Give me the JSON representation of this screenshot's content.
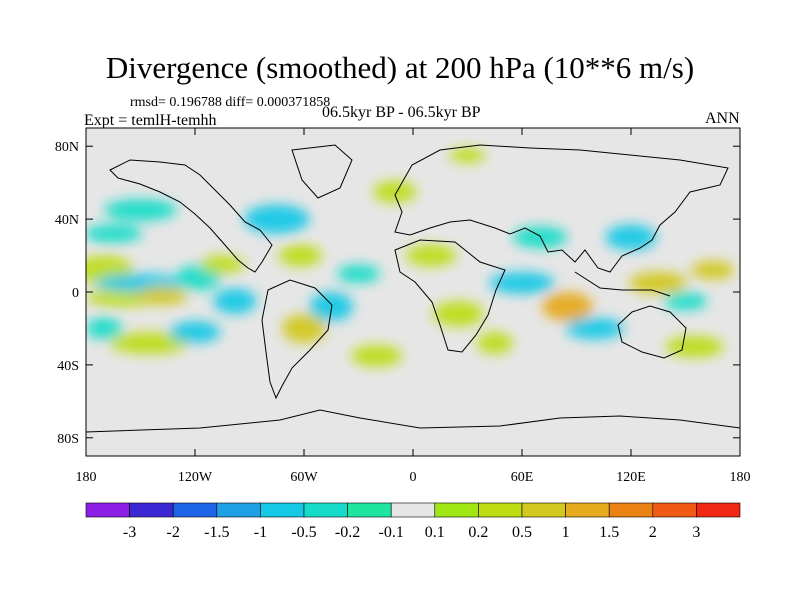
{
  "chart_data": {
    "type": "heatmap",
    "title": "Divergence (smoothed) at 200 hPa (10**6 m/s)",
    "stats_text": "rmsd= 0.196788 diff= 0.000371858",
    "experiment_label": "Expt = temlH-temhh",
    "period_label": "06.5kyr BP - 06.5kyr BP",
    "season_label": "ANN",
    "x_axis": {
      "range": [
        -180,
        180
      ],
      "tick_values": [
        -180,
        -120,
        -60,
        0,
        60,
        120,
        180
      ],
      "tick_labels": [
        "180",
        "120W",
        "60W",
        "0",
        "60E",
        "120E",
        "180"
      ]
    },
    "y_axis": {
      "range": [
        -90,
        90
      ],
      "tick_values": [
        80,
        40,
        0,
        -40,
        -80
      ],
      "tick_labels": [
        "80N",
        "40N",
        "0",
        "40S",
        "80S"
      ]
    },
    "colorbar": {
      "colors": [
        "#8c1ee6",
        "#3c28d2",
        "#1e64e6",
        "#1ea0e6",
        "#14c8e6",
        "#14dcc8",
        "#1ee6a0",
        "#e6e6e6",
        "#a0e614",
        "#bedc14",
        "#d2c81e",
        "#e6aa1e",
        "#eb8214",
        "#f05a14",
        "#f02814"
      ],
      "tick_labels": [
        "-3",
        "-2",
        "-1.5",
        "-1",
        "-0.5",
        "-0.2",
        "-0.1",
        "0.1",
        "0.2",
        "0.5",
        "1",
        "1.5",
        "2",
        "3"
      ]
    },
    "features": [
      {
        "lon": -170,
        "lat": 12,
        "value": 0.3,
        "rx": 16,
        "ry": 8
      },
      {
        "lon": -160,
        "lat": -3,
        "value": 0.4,
        "rx": 20,
        "ry": 5
      },
      {
        "lon": -150,
        "lat": 5,
        "value": -0.6,
        "rx": 25,
        "ry": 5
      },
      {
        "lon": -138,
        "lat": -2,
        "value": 0.9,
        "rx": 14,
        "ry": 5
      },
      {
        "lon": -170,
        "lat": -20,
        "value": -0.3,
        "rx": 10,
        "ry": 6
      },
      {
        "lon": -165,
        "lat": 32,
        "value": -0.2,
        "rx": 16,
        "ry": 5
      },
      {
        "lon": -145,
        "lat": -28,
        "value": 0.5,
        "rx": 22,
        "ry": 6
      },
      {
        "lon": -120,
        "lat": -22,
        "value": -0.5,
        "rx": 14,
        "ry": 6
      },
      {
        "lon": -118,
        "lat": 8,
        "value": -0.4,
        "rx": 12,
        "ry": 7
      },
      {
        "lon": -105,
        "lat": 15,
        "value": 0.5,
        "rx": 12,
        "ry": 5
      },
      {
        "lon": -98,
        "lat": -5,
        "value": -0.8,
        "rx": 12,
        "ry": 7
      },
      {
        "lon": -75,
        "lat": 40,
        "value": -0.5,
        "rx": 18,
        "ry": 8
      },
      {
        "lon": -62,
        "lat": 20,
        "value": 0.4,
        "rx": 12,
        "ry": 6
      },
      {
        "lon": -60,
        "lat": -20,
        "value": 0.9,
        "rx": 12,
        "ry": 8
      },
      {
        "lon": -45,
        "lat": -8,
        "value": -0.6,
        "rx": 12,
        "ry": 8
      },
      {
        "lon": -30,
        "lat": 10,
        "value": -0.3,
        "rx": 12,
        "ry": 5
      },
      {
        "lon": -20,
        "lat": -35,
        "value": 0.3,
        "rx": 14,
        "ry": 6
      },
      {
        "lon": -10,
        "lat": 55,
        "value": 0.3,
        "rx": 12,
        "ry": 6
      },
      {
        "lon": 10,
        "lat": 20,
        "value": 0.4,
        "rx": 14,
        "ry": 6
      },
      {
        "lon": 25,
        "lat": -12,
        "value": 0.5,
        "rx": 14,
        "ry": 7
      },
      {
        "lon": 45,
        "lat": -28,
        "value": 0.3,
        "rx": 10,
        "ry": 6
      },
      {
        "lon": 60,
        "lat": 5,
        "value": -0.9,
        "rx": 18,
        "ry": 6
      },
      {
        "lon": 70,
        "lat": 30,
        "value": -0.3,
        "rx": 15,
        "ry": 6
      },
      {
        "lon": 85,
        "lat": -8,
        "value": 1.4,
        "rx": 14,
        "ry": 8
      },
      {
        "lon": 100,
        "lat": -20,
        "value": -0.7,
        "rx": 16,
        "ry": 6
      },
      {
        "lon": 120,
        "lat": 30,
        "value": -0.6,
        "rx": 14,
        "ry": 7
      },
      {
        "lon": 135,
        "lat": 5,
        "value": 0.6,
        "rx": 16,
        "ry": 6
      },
      {
        "lon": 150,
        "lat": -5,
        "value": -0.4,
        "rx": 12,
        "ry": 5
      },
      {
        "lon": 165,
        "lat": 12,
        "value": 0.8,
        "rx": 12,
        "ry": 5
      },
      {
        "lon": 155,
        "lat": -30,
        "value": 0.4,
        "rx": 16,
        "ry": 6
      },
      {
        "lon": -150,
        "lat": 45,
        "value": -0.2,
        "rx": 20,
        "ry": 6
      },
      {
        "lon": 30,
        "lat": 75,
        "value": 0.3,
        "rx": 10,
        "ry": 4
      }
    ]
  }
}
